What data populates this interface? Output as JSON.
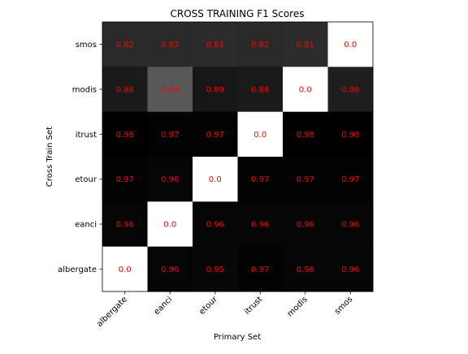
{
  "chart_data": {
    "type": "heatmap",
    "title": "CROSS TRAINING F1 Scores",
    "xlabel": "Primary Set",
    "ylabel": "Cross Train Set",
    "x_categories": [
      "albergate",
      "eanci",
      "etour",
      "itrust",
      "modis",
      "smos"
    ],
    "y_categories": [
      "smos",
      "modis",
      "itrust",
      "etour",
      "eanci",
      "albergate"
    ],
    "values": [
      [
        0.82,
        0.82,
        0.81,
        0.82,
        0.81,
        0.0
      ],
      [
        0.88,
        0.64,
        0.89,
        0.88,
        0.0,
        0.86
      ],
      [
        0.98,
        0.97,
        0.97,
        0.0,
        0.98,
        0.98
      ],
      [
        0.97,
        0.96,
        0.0,
        0.97,
        0.97,
        0.97
      ],
      [
        0.96,
        0.0,
        0.96,
        0.96,
        0.96,
        0.96
      ],
      [
        0.0,
        0.96,
        0.95,
        0.97,
        0.96,
        0.96
      ]
    ],
    "value_labels": [
      [
        "0.82",
        "0.82",
        "0.81",
        "0.82",
        "0.81",
        "0.0"
      ],
      [
        "0.88",
        "0.64",
        "0.89",
        "0.88",
        "0.0",
        "0.86"
      ],
      [
        "0.98",
        "0.97",
        "0.97",
        "0.0",
        "0.98",
        "0.98"
      ],
      [
        "0.97",
        "0.96",
        "0.0",
        "0.97",
        "0.97",
        "0.97"
      ],
      [
        "0.96",
        "0.0",
        "0.96",
        "0.96",
        "0.96",
        "0.96"
      ],
      [
        "0.0",
        "0.96",
        "0.95",
        "0.97",
        "0.96",
        "0.96"
      ]
    ],
    "colormap": "gray_r",
    "value_range": [
      0.0,
      0.98
    ],
    "label_color": "#ff0000",
    "grid": false,
    "legend": "none"
  }
}
